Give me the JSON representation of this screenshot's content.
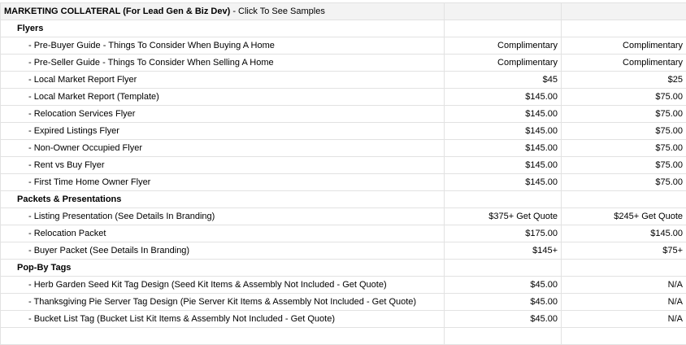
{
  "header": {
    "title": "MARKETING COLLATERAL (For Lead Gen & Biz Dev)",
    "subtitle": " - Click To See Samples"
  },
  "sections": [
    {
      "title": "Flyers",
      "items": [
        {
          "name": "- Pre-Buyer Guide - Things To Consider When Buying A Home",
          "price1": "Complimentary",
          "price2": "Complimentary"
        },
        {
          "name": "- Pre-Seller Guide - Things To Consider When Selling A Home",
          "price1": "Complimentary",
          "price2": "Complimentary"
        },
        {
          "name": "- Local Market Report Flyer",
          "price1": "$45",
          "price2": "$25"
        },
        {
          "name": "- Local Market Report (Template)",
          "price1": "$145.00",
          "price2": "$75.00"
        },
        {
          "name": "- Relocation Services Flyer",
          "price1": "$145.00",
          "price2": "$75.00"
        },
        {
          "name": "- Expired Listings Flyer",
          "price1": "$145.00",
          "price2": "$75.00"
        },
        {
          "name": "- Non-Owner Occupied Flyer",
          "price1": "$145.00",
          "price2": "$75.00"
        },
        {
          "name": "- Rent vs Buy Flyer",
          "price1": "$145.00",
          "price2": "$75.00"
        },
        {
          "name": "- First Time Home Owner Flyer",
          "price1": "$145.00",
          "price2": "$75.00"
        }
      ]
    },
    {
      "title": "Packets & Presentations",
      "items": [
        {
          "name": "- Listing Presentation (See Details In Branding)",
          "price1": "$375+ Get Quote",
          "price2": "$245+ Get Quote"
        },
        {
          "name": "- Relocation Packet",
          "price1": "$175.00",
          "price2": "$145.00"
        },
        {
          "name": "- Buyer Packet (See Details In Branding)",
          "price1": "$145+",
          "price2": "$75+"
        }
      ]
    },
    {
      "title": "Pop-By Tags",
      "items": [
        {
          "name": "- Herb Garden Seed Kit Tag Design (Seed Kit Items & Assembly Not Included - Get Quote)",
          "price1": "$45.00",
          "price2": "N/A"
        },
        {
          "name": "- Thanksgiving Pie Server Tag Design (Pie Server Kit Items & Assembly Not Included - Get Quote)",
          "price1": "$45.00",
          "price2": "N/A"
        },
        {
          "name": "- Bucket List Tag (Bucket List Kit Items & Assembly Not Included - Get Quote)",
          "price1": "$45.00",
          "price2": "N/A"
        }
      ]
    }
  ]
}
